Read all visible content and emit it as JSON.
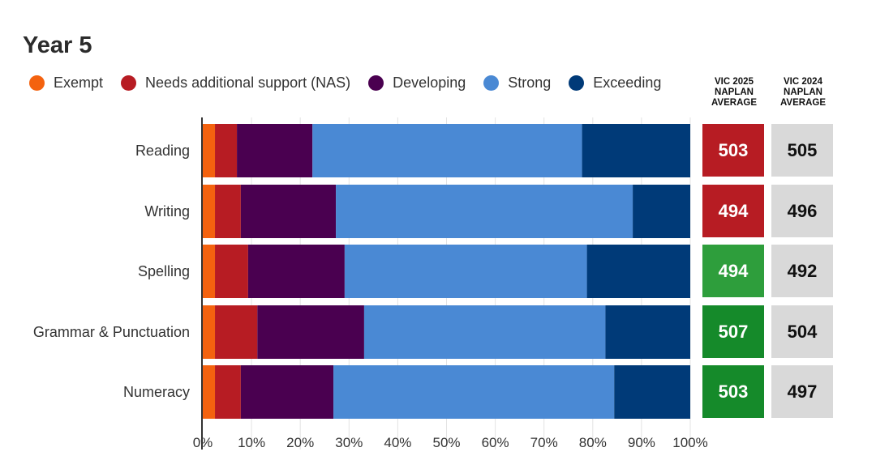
{
  "title": "Year 5",
  "columns": {
    "vic2025": "VIC 2025 NAPLAN AVERAGE",
    "vic2024": "VIC 2024 NAPLAN AVERAGE"
  },
  "colors": {
    "exempt": "#f4620f",
    "nas": "#b71c23",
    "developing": "#4a0050",
    "strong": "#4a89d4",
    "exceeding": "#003a78",
    "avg_red": "#b71c23",
    "avg_green_light": "#2e9e3c",
    "avg_green": "#158a2a",
    "avg_grey": "#d9d9d9"
  },
  "chart_data": {
    "type": "bar",
    "orientation": "horizontal",
    "stacked": true,
    "title": "Year 5",
    "categories": [
      "Reading",
      "Writing",
      "Spelling",
      "Grammar & Punctuation",
      "Numeracy"
    ],
    "series": [
      {
        "name": "Exempt",
        "values": [
          2.5,
          2.5,
          2.5,
          2.5,
          2.5
        ]
      },
      {
        "name": "Needs additional support (NAS)",
        "values": [
          4.5,
          5.3,
          6.8,
          8.7,
          5.3
        ]
      },
      {
        "name": "Developing",
        "values": [
          15.5,
          19.5,
          19.8,
          21.9,
          19
        ]
      },
      {
        "name": "Strong",
        "values": [
          55.3,
          60.9,
          49.7,
          49.5,
          57.6
        ]
      },
      {
        "name": "Exceeding",
        "values": [
          22.2,
          11.8,
          21.2,
          17.4,
          15.6
        ]
      }
    ],
    "xlim": [
      0,
      100
    ],
    "x_ticks": [
      "0%",
      "10%",
      "20%",
      "30%",
      "40%",
      "50%",
      "60%",
      "70%",
      "80%",
      "90%",
      "100%"
    ],
    "grid": true,
    "legend": "top",
    "vic2025_average": [
      503,
      494,
      494,
      507,
      503
    ],
    "vic2025_colors": [
      "#b71c23",
      "#b71c23",
      "#2e9e3c",
      "#158a2a",
      "#158a2a"
    ],
    "vic2024_average": [
      505,
      496,
      492,
      504,
      497
    ]
  }
}
